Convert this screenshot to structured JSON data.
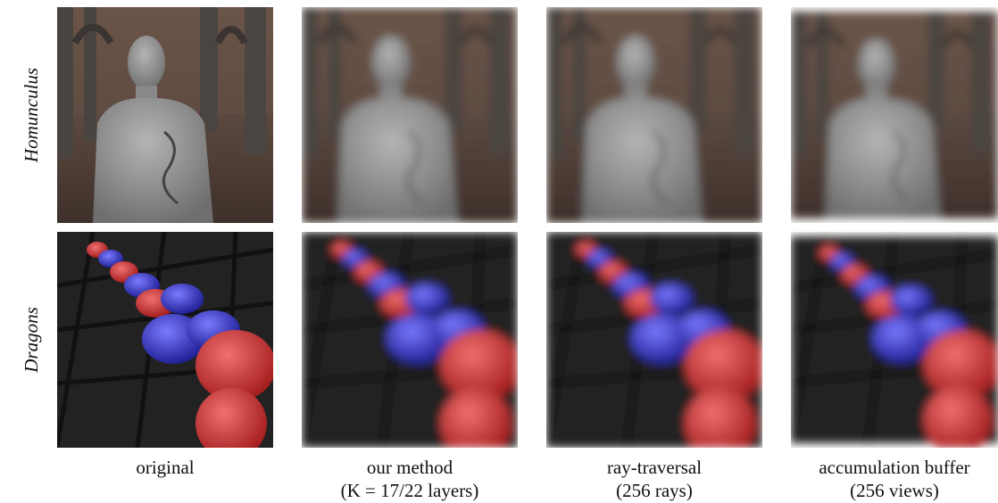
{
  "rows": [
    {
      "label": "Homunculus"
    },
    {
      "label": "Dragons"
    }
  ],
  "columns": [
    {
      "caption": [
        "original"
      ]
    },
    {
      "caption": [
        "our method",
        "(K = 17/22 layers)"
      ]
    },
    {
      "caption": [
        "ray-traversal",
        "(256 rays)"
      ]
    },
    {
      "caption": [
        "accumulation buffer",
        "(256 views)"
      ]
    }
  ]
}
